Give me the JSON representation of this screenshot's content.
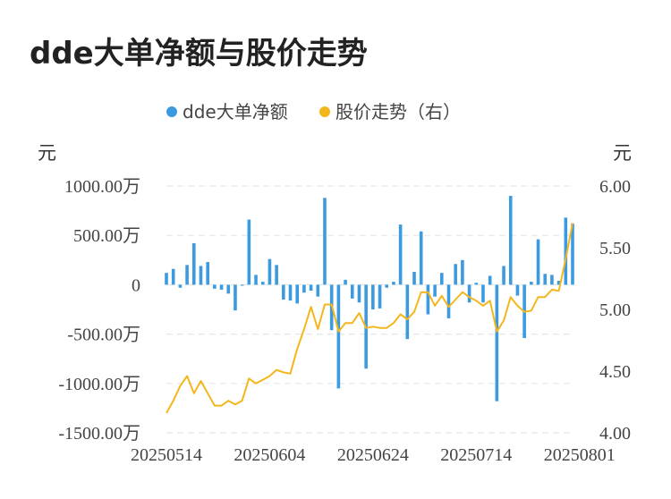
{
  "title": "dde大单净额与股价走势",
  "colors": {
    "bar": "#3c9be0",
    "line": "#f4b71b",
    "grid": "#e6e6e6"
  },
  "chart_data": {
    "type": "bar",
    "legend": {
      "items": [
        "dde大单净额",
        "股价走势（右）"
      ],
      "position": "top-center"
    },
    "left_axis": {
      "unit": "元",
      "min": -1500,
      "max": 1000,
      "ticks": [
        1000,
        500,
        0,
        -500,
        -1000,
        -1500
      ],
      "tick_labels": [
        "1000.00万",
        "500.00万",
        "0",
        "-500.00万",
        "-1000.00万",
        "-1500.00万"
      ]
    },
    "right_axis": {
      "unit": "元",
      "min": 4.0,
      "max": 6.0,
      "ticks": [
        6.0,
        5.5,
        5.0,
        4.5,
        4.0
      ],
      "tick_labels": [
        "6.00",
        "5.50",
        "5.00",
        "4.50",
        "4.00"
      ]
    },
    "x_tick_labels": [
      "20250514",
      "20250604",
      "20250624",
      "20250714",
      "20250801"
    ],
    "x_tick_indices": [
      0,
      15,
      30,
      45,
      60
    ],
    "grid": true,
    "series": [
      {
        "name": "dde大单净额",
        "axis": "left",
        "type": "bar",
        "values": [
          120,
          160,
          -30,
          200,
          420,
          190,
          230,
          -40,
          -50,
          -90,
          -260,
          -10,
          660,
          100,
          30,
          260,
          200,
          -150,
          -160,
          -190,
          -80,
          -60,
          -120,
          880,
          -460,
          -1050,
          50,
          -140,
          -180,
          -850,
          -250,
          -240,
          -30,
          30,
          610,
          -550,
          130,
          540,
          -300,
          -120,
          120,
          -340,
          210,
          250,
          -180,
          20,
          -180,
          90,
          -1180,
          190,
          900,
          -110,
          -540,
          30,
          460,
          110,
          100,
          40,
          680,
          620
        ]
      },
      {
        "name": "股价走势（右）",
        "axis": "right",
        "type": "line",
        "values": [
          4.16,
          4.26,
          4.38,
          4.46,
          4.32,
          4.42,
          4.32,
          4.22,
          4.22,
          4.26,
          4.23,
          4.26,
          4.44,
          4.4,
          4.43,
          4.46,
          4.51,
          4.49,
          4.48,
          4.68,
          4.84,
          5.02,
          4.84,
          5.04,
          5.04,
          4.82,
          4.89,
          4.89,
          4.97,
          4.85,
          4.86,
          4.85,
          4.85,
          4.89,
          4.96,
          4.92,
          4.98,
          5.14,
          5.14,
          5.03,
          5.11,
          5.02,
          5.08,
          5.14,
          5.1,
          5.07,
          5.03,
          5.07,
          4.82,
          4.91,
          5.1,
          5.03,
          4.98,
          4.99,
          5.1,
          5.1,
          5.16,
          5.15,
          5.41,
          5.7
        ]
      }
    ]
  }
}
